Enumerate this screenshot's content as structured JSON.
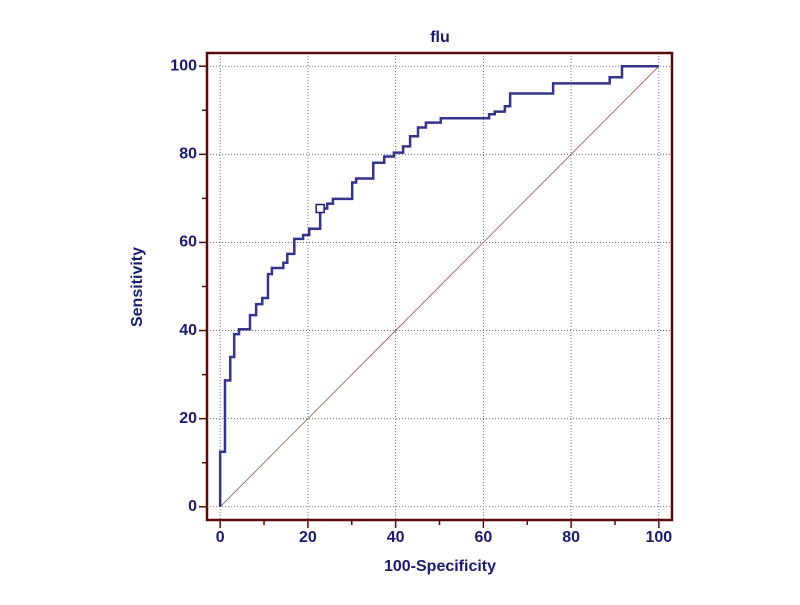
{
  "chart_data": {
    "type": "line",
    "title": "flu",
    "xlabel": "100-Specificity",
    "ylabel": "Sensitivity",
    "xlim": [
      -3,
      103
    ],
    "ylim": [
      -3,
      103
    ],
    "xticks": [
      0,
      20,
      40,
      60,
      80,
      100
    ],
    "yticks": [
      0,
      20,
      40,
      60,
      80,
      100
    ],
    "xminorticks": [
      10,
      30,
      50,
      70,
      90
    ],
    "yminorticks": [
      10,
      30,
      50,
      70,
      90
    ],
    "grid": true,
    "series": [
      {
        "color": "#34348a",
        "width": 2.5,
        "x": [
          0,
          0,
          1.1,
          1.1,
          2.3,
          2.3,
          3.2,
          3.2,
          4.3,
          4.3,
          6.8,
          6.8,
          8.2,
          8.2,
          9.6,
          9.6,
          10.9,
          10.9,
          11.8,
          11.8,
          14.4,
          14.4,
          15.3,
          15.3,
          16.9,
          16.9,
          18.9,
          18.9,
          20.3,
          20.3,
          22.8,
          22.8,
          24.4,
          24.4,
          25.7,
          25.7,
          30.1,
          30.1,
          31,
          31,
          34.9,
          34.9,
          37.4,
          37.4,
          39.6,
          39.6,
          41.7,
          41.7,
          43.3,
          43.3,
          45.1,
          45.1,
          46.9,
          46.9,
          50.3,
          50.3,
          61.3,
          61.3,
          62.6,
          62.6,
          64.9,
          64.9,
          66.1,
          66.1,
          75.9,
          75.9,
          88.8,
          88.8,
          91.6,
          91.6,
          100
        ],
        "values": [
          0,
          12.5,
          12.5,
          28.7,
          28.7,
          34,
          34,
          39.2,
          39.2,
          40.3,
          40.3,
          43.5,
          43.5,
          46,
          46,
          47.4,
          47.4,
          52.8,
          52.8,
          54.2,
          54.2,
          55.4,
          55.4,
          57.4,
          57.4,
          60.8,
          60.8,
          61.7,
          61.7,
          63.1,
          63.1,
          67.7,
          67.7,
          68.8,
          68.8,
          69.9,
          69.9,
          73.6,
          73.6,
          74.5,
          74.5,
          78.1,
          78.1,
          79.5,
          79.5,
          80.4,
          80.4,
          81.8,
          81.8,
          84.1,
          84.1,
          86.1,
          86.1,
          87.2,
          87.2,
          88.2,
          88.2,
          89.1,
          89.1,
          89.7,
          89.7,
          90.9,
          90.9,
          93.8,
          93.8,
          96.1,
          96.1,
          97.5,
          97.5,
          100,
          100
        ]
      },
      {
        "color": "#a05050",
        "width": 0.8,
        "x": [
          0,
          100
        ],
        "values": [
          0,
          100
        ]
      }
    ],
    "marker": {
      "x": 22.8,
      "y": 67.7,
      "color": "#1a1a6e"
    },
    "text_color": "#1a1a6e",
    "frame_color": "#5a0a0a"
  }
}
